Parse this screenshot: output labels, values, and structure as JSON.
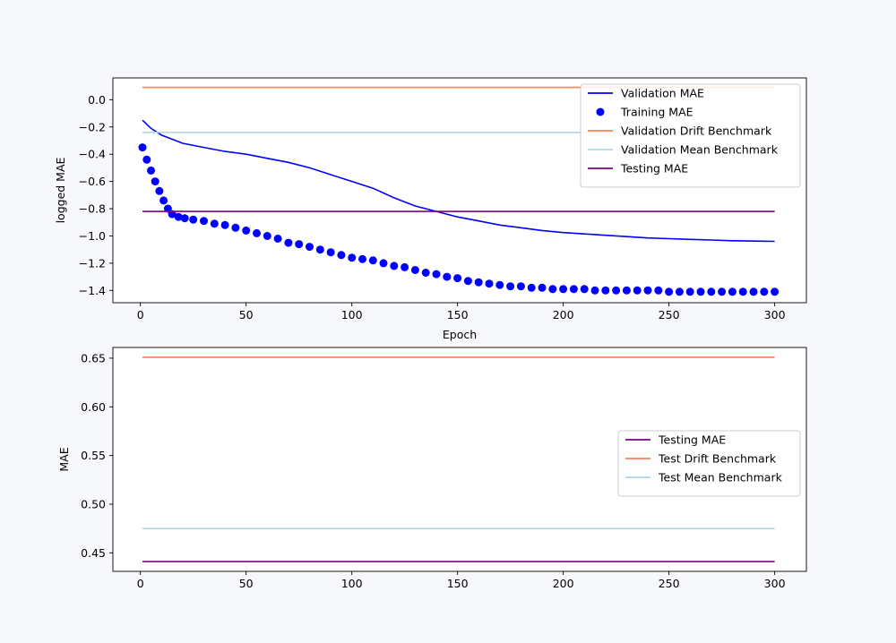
{
  "chart_data": [
    {
      "type": "line",
      "title": "",
      "xlabel": "Epoch",
      "ylabel": "logged MAE",
      "xlim": [
        -13,
        315
      ],
      "ylim": [
        -1.49,
        0.16
      ],
      "xticks": [
        0,
        50,
        100,
        150,
        200,
        250,
        300
      ],
      "yticks": [
        0.0,
        -0.2,
        -0.4,
        -0.6,
        -0.8,
        -1.0,
        -1.2,
        -1.4
      ],
      "ytick_labels": [
        "0.0",
        "−0.2",
        "−0.4",
        "−0.6",
        "−0.8",
        "−1.0",
        "−1.2",
        "−1.4"
      ],
      "legend_position": "top-right",
      "series": [
        {
          "name": "Validation MAE",
          "style": "line",
          "color": "#0000ff",
          "x": [
            1,
            5,
            10,
            20,
            30,
            40,
            50,
            60,
            70,
            80,
            90,
            100,
            110,
            120,
            130,
            140,
            150,
            160,
            170,
            180,
            190,
            200,
            210,
            220,
            230,
            240,
            250,
            260,
            270,
            280,
            290,
            300
          ],
          "y": [
            -0.15,
            -0.21,
            -0.26,
            -0.32,
            -0.35,
            -0.38,
            -0.4,
            -0.43,
            -0.46,
            -0.5,
            -0.55,
            -0.6,
            -0.65,
            -0.72,
            -0.78,
            -0.82,
            -0.86,
            -0.89,
            -0.92,
            -0.94,
            -0.96,
            -0.975,
            -0.985,
            -0.995,
            -1.005,
            -1.015,
            -1.02,
            -1.025,
            -1.03,
            -1.035,
            -1.038,
            -1.04
          ]
        },
        {
          "name": "Training MAE",
          "style": "scatter",
          "color": "#0000ff",
          "x": [
            1,
            3,
            5,
            7,
            9,
            11,
            13,
            15,
            18,
            21,
            25,
            30,
            35,
            40,
            45,
            50,
            55,
            60,
            65,
            70,
            75,
            80,
            85,
            90,
            95,
            100,
            105,
            110,
            115,
            120,
            125,
            130,
            135,
            140,
            145,
            150,
            155,
            160,
            165,
            170,
            175,
            180,
            185,
            190,
            195,
            200,
            205,
            210,
            215,
            220,
            225,
            230,
            235,
            240,
            245,
            250,
            255,
            260,
            265,
            270,
            275,
            280,
            285,
            290,
            295,
            300
          ],
          "y": [
            -0.35,
            -0.44,
            -0.52,
            -0.6,
            -0.67,
            -0.74,
            -0.8,
            -0.84,
            -0.86,
            -0.87,
            -0.88,
            -0.89,
            -0.91,
            -0.92,
            -0.94,
            -0.96,
            -0.98,
            -1.0,
            -1.02,
            -1.05,
            -1.06,
            -1.08,
            -1.1,
            -1.12,
            -1.14,
            -1.16,
            -1.17,
            -1.18,
            -1.2,
            -1.22,
            -1.23,
            -1.25,
            -1.27,
            -1.28,
            -1.3,
            -1.31,
            -1.33,
            -1.34,
            -1.35,
            -1.36,
            -1.37,
            -1.37,
            -1.38,
            -1.38,
            -1.39,
            -1.39,
            -1.39,
            -1.39,
            -1.4,
            -1.4,
            -1.4,
            -1.4,
            -1.4,
            -1.4,
            -1.4,
            -1.41,
            -1.41,
            -1.41,
            -1.41,
            -1.41,
            -1.41,
            -1.41,
            -1.41,
            -1.41,
            -1.41,
            -1.41
          ]
        },
        {
          "name": "Validation Drift Benchmark",
          "style": "line",
          "color": "#ff7f50",
          "x": [
            1,
            300
          ],
          "y": [
            0.09,
            0.09
          ]
        },
        {
          "name": "Validation Mean Benchmark",
          "style": "line",
          "color": "#add8e6",
          "x": [
            1,
            300
          ],
          "y": [
            -0.24,
            -0.24
          ]
        },
        {
          "name": "Testing MAE",
          "style": "line",
          "color": "#800080",
          "x": [
            1,
            300
          ],
          "y": [
            -0.82,
            -0.82
          ]
        }
      ]
    },
    {
      "type": "line",
      "title": "",
      "xlabel": "",
      "ylabel": "MAE",
      "xlim": [
        -13,
        315
      ],
      "ylim": [
        0.431,
        0.661
      ],
      "xticks": [
        0,
        50,
        100,
        150,
        200,
        250,
        300
      ],
      "yticks": [
        0.45,
        0.5,
        0.55,
        0.6,
        0.65
      ],
      "ytick_labels": [
        "0.45",
        "0.50",
        "0.55",
        "0.60",
        "0.65"
      ],
      "legend_position": "center-right",
      "series": [
        {
          "name": "Testing MAE",
          "style": "line",
          "color": "#800080",
          "x": [
            1,
            300
          ],
          "y": [
            0.441,
            0.441
          ]
        },
        {
          "name": "Test Drift Benchmark",
          "style": "line",
          "color": "#ff7f50",
          "x": [
            1,
            300
          ],
          "y": [
            0.651,
            0.651
          ]
        },
        {
          "name": "Test Mean Benchmark",
          "style": "line",
          "color": "#add8e6",
          "x": [
            1,
            300
          ],
          "y": [
            0.475,
            0.475
          ]
        }
      ]
    }
  ]
}
